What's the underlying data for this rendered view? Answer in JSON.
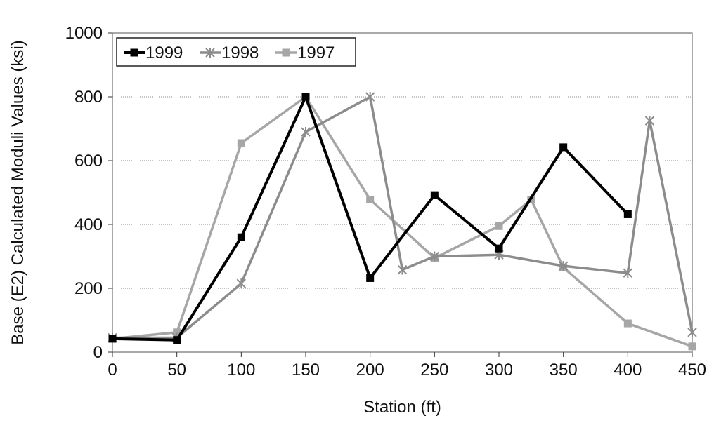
{
  "chart_data": {
    "type": "line",
    "xlabel": "Station (ft)",
    "ylabel": "Base (E2) Calculated Moduli Values (ksi)",
    "xlim": [
      0,
      450
    ],
    "ylim": [
      0,
      1000
    ],
    "x_ticks": [
      "0",
      "50",
      "100",
      "150",
      "200",
      "250",
      "300",
      "350",
      "400",
      "450"
    ],
    "y_ticks": [
      "0",
      "200",
      "400",
      "600",
      "800",
      "1000"
    ],
    "grid": "horizontal",
    "legend_position": "top-left",
    "series": [
      {
        "name": "1999",
        "color": "#000000",
        "marker": "square",
        "points": [
          [
            0,
            42
          ],
          [
            50,
            38
          ],
          [
            100,
            360
          ],
          [
            150,
            800
          ],
          [
            200,
            232
          ],
          [
            250,
            492
          ],
          [
            300,
            325
          ],
          [
            350,
            642
          ],
          [
            400,
            432
          ]
        ]
      },
      {
        "name": "1998",
        "color": "#8c8c8c",
        "marker": "star",
        "points": [
          [
            0,
            45
          ],
          [
            50,
            45
          ],
          [
            100,
            215
          ],
          [
            150,
            690
          ],
          [
            200,
            800
          ],
          [
            225,
            258
          ],
          [
            250,
            300
          ],
          [
            300,
            305
          ],
          [
            350,
            270
          ],
          [
            400,
            248
          ],
          [
            417,
            725
          ],
          [
            450,
            62
          ]
        ]
      },
      {
        "name": "1997",
        "color": "#a6a6a6",
        "marker": "square",
        "points": [
          [
            0,
            42
          ],
          [
            50,
            62
          ],
          [
            100,
            655
          ],
          [
            150,
            800
          ],
          [
            200,
            478
          ],
          [
            250,
            295
          ],
          [
            300,
            395
          ],
          [
            325,
            478
          ],
          [
            350,
            265
          ],
          [
            400,
            90
          ],
          [
            450,
            18
          ]
        ]
      }
    ]
  }
}
